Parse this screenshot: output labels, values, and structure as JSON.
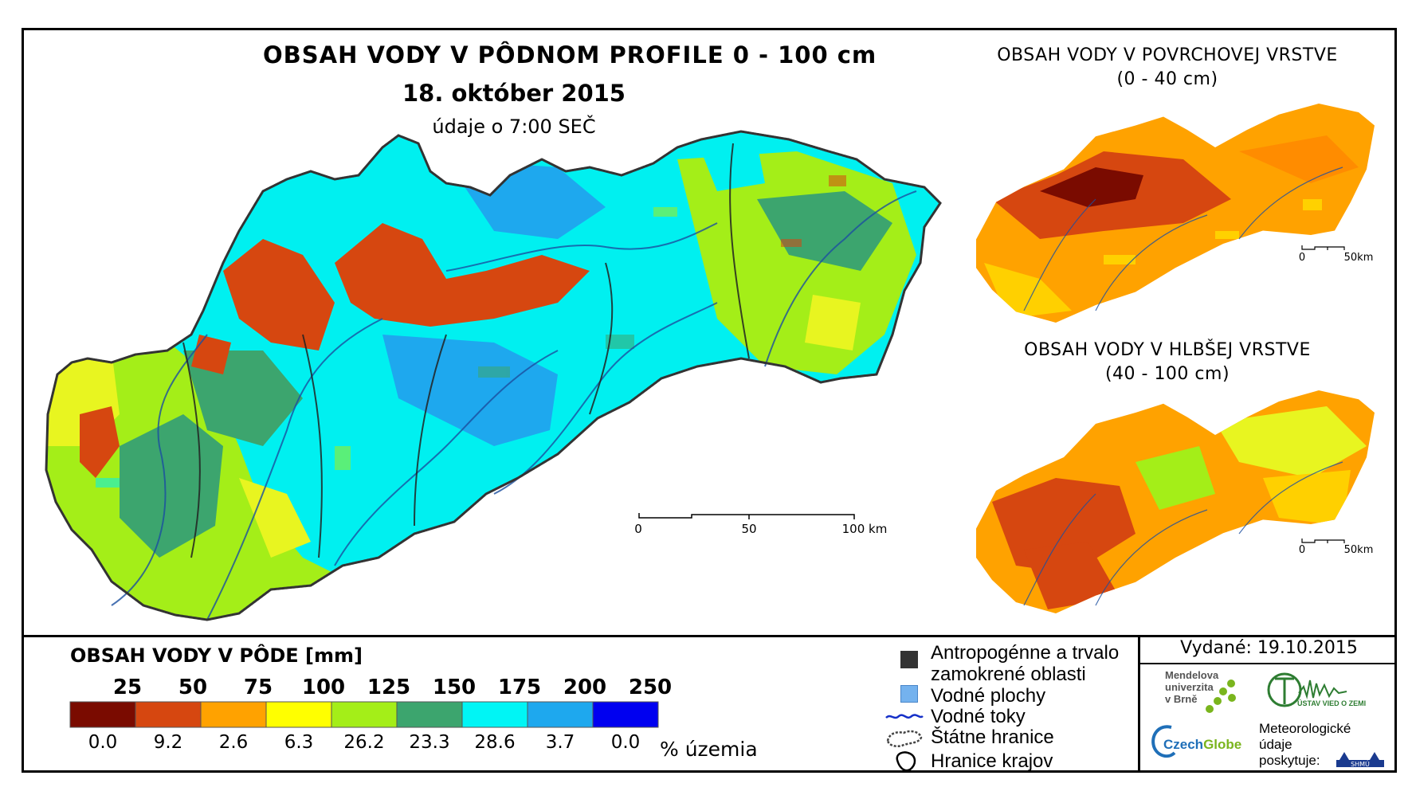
{
  "main": {
    "title": "OBSAH VODY V PÔDNOM PROFILE 0 - 100 cm",
    "date": "18. október 2015",
    "time": "údaje o 7:00 SEČ",
    "scale": {
      "t0": "0",
      "t1": "50",
      "t2": "100 km"
    }
  },
  "inset_top": {
    "title": "OBSAH VODY V POVRCHOVEJ VRSTVE",
    "range": "(0 - 40 cm)",
    "scale": {
      "t0": "0",
      "t1": "50km"
    }
  },
  "inset_bottom": {
    "title": "OBSAH VODY V HLBŠEJ VRSTVE",
    "range": "(40 - 100 cm)",
    "scale": {
      "t0": "0",
      "t1": "50km"
    }
  },
  "legend": {
    "title": "OBSAH VODY V PÔDE [mm]",
    "unit": "% územia",
    "thresholds": [
      "25",
      "50",
      "75",
      "100",
      "125",
      "150",
      "175",
      "200",
      "250"
    ],
    "classes": [
      {
        "color": "#7a0b00",
        "pct": "0.0"
      },
      {
        "color": "#d64710",
        "pct": "9.2"
      },
      {
        "color": "#ffa200",
        "pct": "2.6"
      },
      {
        "color": "#ffff00",
        "pct": "6.3"
      },
      {
        "color": "#a4ee18",
        "pct": "26.2"
      },
      {
        "color": "#3ca56e",
        "pct": "23.3"
      },
      {
        "color": "#00f5f5",
        "pct": "28.6"
      },
      {
        "color": "#1ea8ee",
        "pct": "3.7"
      },
      {
        "color": "#0000f0",
        "pct": "0.0"
      }
    ]
  },
  "symbols": {
    "anthropogenic_line1": "Antropogénne a trvalo",
    "anthropogenic_line2": "zamokrené oblasti",
    "water_bodies": "Vodné plochy",
    "streams": "Vodné toky",
    "state_border": "Štátne hranice",
    "region_border": "Hranice krajov"
  },
  "issued": "Vydané: 19.10.2015",
  "logos": {
    "mendel_1": "Mendelova",
    "mendel_2": "univerzita",
    "mendel_3": "v Brně",
    "czechglobe_a": "Czech",
    "czechglobe_b": "Globe",
    "uvz": "ÚSTAV VIED O ZEMI",
    "met_1": "Meteorologické",
    "met_2": "údaje",
    "met_3": "poskytuje:",
    "shmu": "SHMÚ"
  }
}
